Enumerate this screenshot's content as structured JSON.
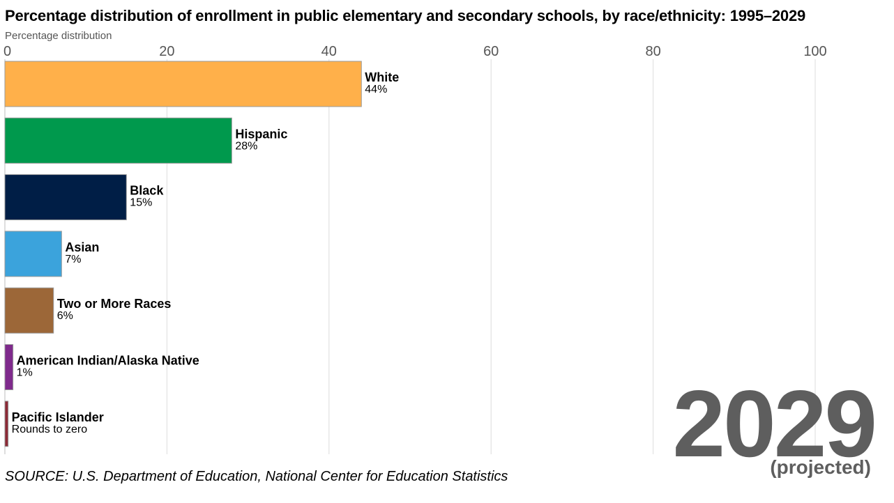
{
  "chart_data": {
    "type": "bar",
    "orientation": "horizontal",
    "title": "Percentage distribution of enrollment in public elementary and secondary schools, by race/ethnicity: 1995–2029",
    "xlabel": "Percentage distribution",
    "ylabel": "",
    "xlim": [
      0,
      100
    ],
    "xticks": [
      0,
      20,
      40,
      60,
      80,
      100
    ],
    "grid": true,
    "categories": [
      "White",
      "Hispanic",
      "Black",
      "Asian",
      "Two or More Races",
      "American Indian/Alaska Native",
      "Pacific Islander"
    ],
    "values": [
      44,
      28,
      15,
      7,
      6,
      1,
      0.4
    ],
    "value_labels": [
      "44%",
      "28%",
      "15%",
      "7%",
      "6%",
      "1%",
      "Rounds to zero"
    ],
    "colors": [
      "#ffb04a",
      "#00994d",
      "#001e46",
      "#3ba3dc",
      "#9c6738",
      "#7f2a8c",
      "#8c2a36"
    ],
    "year": "2029",
    "year_note": "(projected)",
    "source": "SOURCE: U.S. Department of Education, National Center for Education Statistics"
  }
}
